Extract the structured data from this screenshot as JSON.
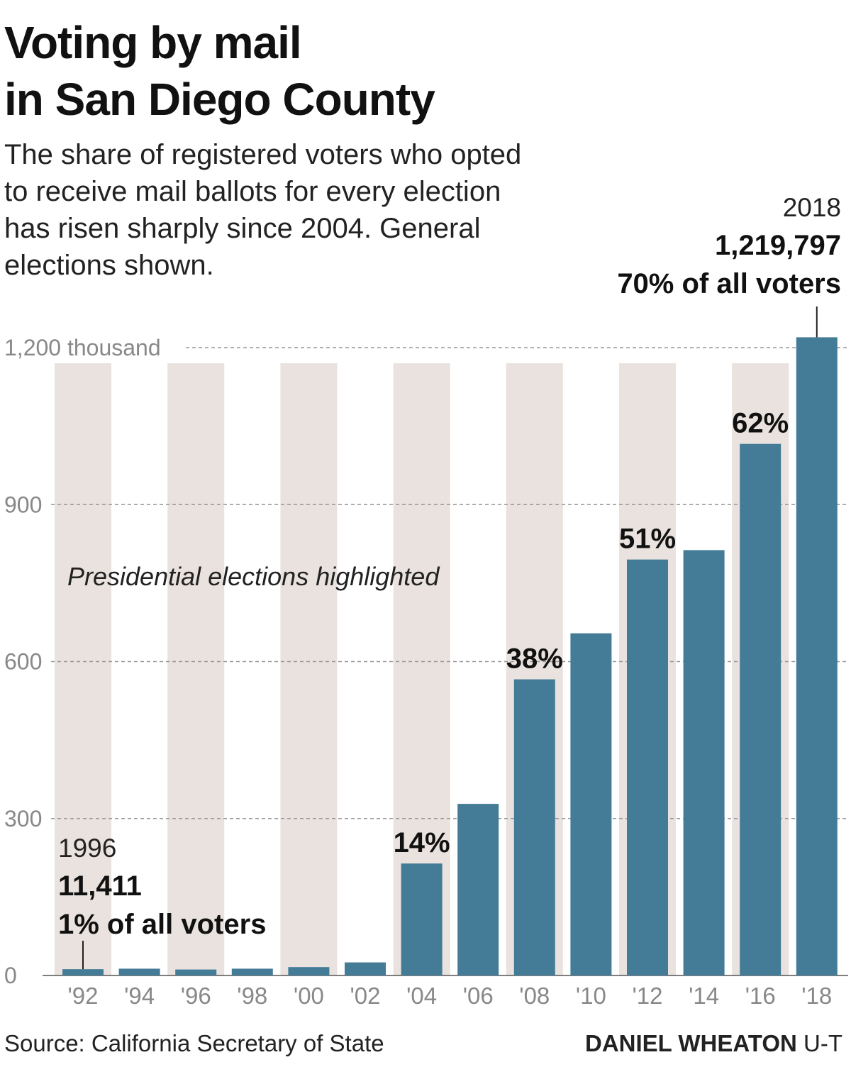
{
  "title_line1": "Voting by mail",
  "title_line2": "in San Diego County",
  "subtitle": "The share of registered voters who opted to receive mail ballots for every election has risen sharply since 2004. General elections shown.",
  "source": "Source: California Secretary of State",
  "credit_name": "DANIEL WHEATON",
  "credit_org": "U-T",
  "colors": {
    "bar": "#447c97",
    "highlight": "#e9e2de",
    "grid": "#999999",
    "axis_text": "#888888"
  },
  "chart_data": {
    "type": "bar",
    "categories": [
      "'92",
      "'94",
      "'96",
      "'98",
      "'00",
      "'02",
      "'04",
      "'06",
      "'08",
      "'10",
      "'12",
      "'14",
      "'16",
      "'18"
    ],
    "values": [
      12,
      13,
      11.411,
      13,
      16,
      25,
      214,
      328,
      566,
      654,
      795,
      813,
      1016,
      1219.797
    ],
    "presidential": [
      true,
      false,
      true,
      false,
      true,
      false,
      true,
      false,
      true,
      false,
      true,
      false,
      true,
      false
    ],
    "percent_labels": [
      "",
      "",
      "",
      "",
      "",
      "",
      "14%",
      "",
      "38%",
      "",
      "51%",
      "",
      "62%",
      ""
    ],
    "y_ticks": [
      {
        "value": 0,
        "label": "0"
      },
      {
        "value": 300,
        "label": "300"
      },
      {
        "value": 600,
        "label": "600"
      },
      {
        "value": 900,
        "label": "900"
      },
      {
        "value": 1200,
        "label": "1,200 thousand"
      }
    ],
    "ylim": [
      0,
      1200
    ],
    "highlight_note": "Presidential elections highlighted",
    "annotations": {
      "left": {
        "year": "1996",
        "count": "11,411",
        "share": "1% of all voters"
      },
      "right": {
        "year": "2018",
        "count": "1,219,797",
        "share": "70% of all voters"
      }
    },
    "grid": true
  }
}
